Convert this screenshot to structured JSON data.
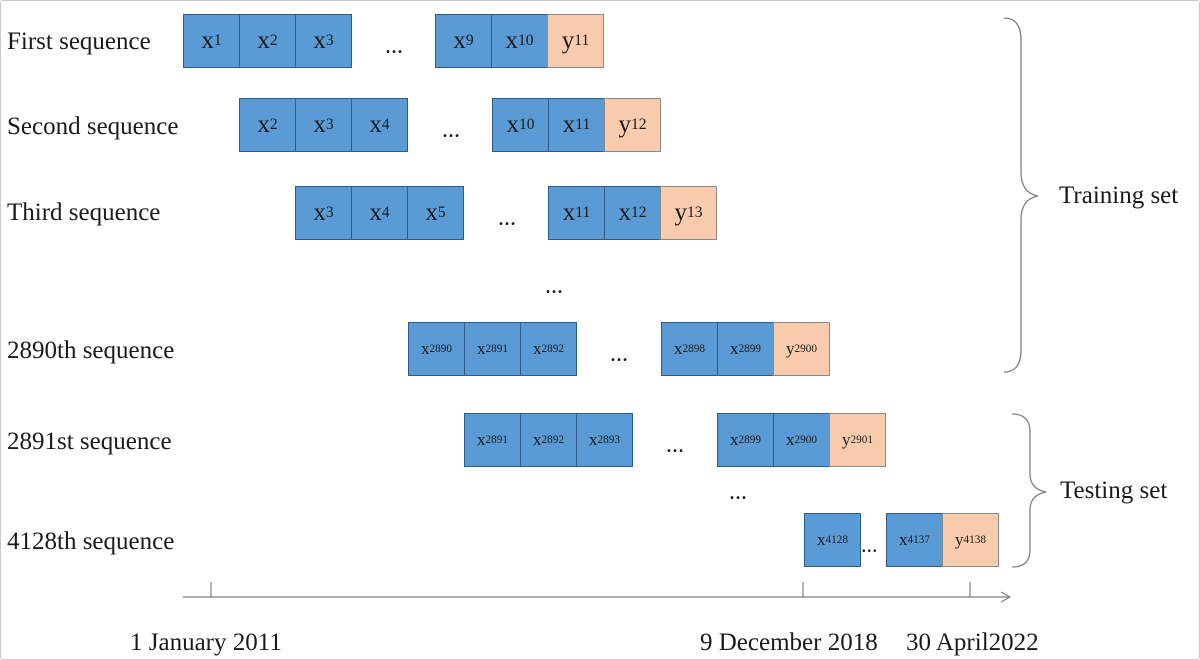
{
  "rows": [
    {
      "label": "First sequence",
      "cells": [
        [
          "x",
          "1"
        ],
        [
          "x",
          "2"
        ],
        [
          "x",
          "3"
        ],
        [
          "x",
          "9"
        ],
        [
          "x",
          "10"
        ],
        [
          "y",
          "11"
        ]
      ]
    },
    {
      "label": "Second sequence",
      "cells": [
        [
          "x",
          "2"
        ],
        [
          "x",
          "3"
        ],
        [
          "x",
          "4"
        ],
        [
          "x",
          "10"
        ],
        [
          "x",
          "11"
        ],
        [
          "y",
          "12"
        ]
      ]
    },
    {
      "label": "Third sequence",
      "cells": [
        [
          "x",
          "3"
        ],
        [
          "x",
          "4"
        ],
        [
          "x",
          "5"
        ],
        [
          "x",
          "11"
        ],
        [
          "x",
          "12"
        ],
        [
          "y",
          "13"
        ]
      ]
    },
    {
      "label": "2890th sequence",
      "cells": [
        [
          "x",
          "2890"
        ],
        [
          "x",
          "2891"
        ],
        [
          "x",
          "2892"
        ],
        [
          "x",
          "2898"
        ],
        [
          "x",
          "2899"
        ],
        [
          "y",
          "2900"
        ]
      ]
    },
    {
      "label": "2891st sequence",
      "cells": [
        [
          "x",
          "2891"
        ],
        [
          "x",
          "2892"
        ],
        [
          "x",
          "2893"
        ],
        [
          "x",
          "2899"
        ],
        [
          "x",
          "2900"
        ],
        [
          "y",
          "2901"
        ]
      ]
    },
    {
      "label": "4128th sequence",
      "cells": [
        [
          "x",
          "4128"
        ],
        [
          "x",
          "4137"
        ],
        [
          "y",
          "4138"
        ]
      ]
    }
  ],
  "ellipsis": "...",
  "sets": {
    "training": "Training set",
    "testing": "Testing set"
  },
  "timeline": {
    "start": "1 January 2011",
    "split": "9 December 2018",
    "end": "30 April2022"
  },
  "colors": {
    "input_cell": "#5b9bd5",
    "target_cell": "#f8cbad",
    "border": "#2e5c8a"
  }
}
